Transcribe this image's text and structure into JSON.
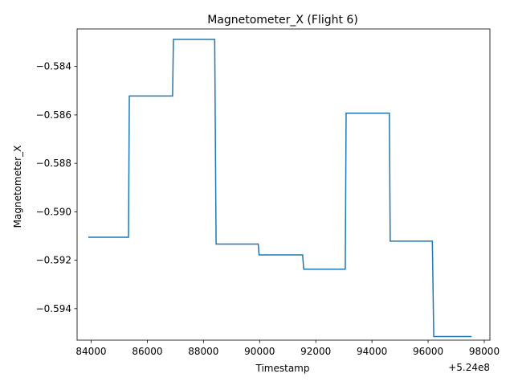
{
  "chart_data": {
    "type": "line",
    "title": "Magnetometer_X (Flight 6)",
    "xlabel": "Timestamp",
    "ylabel": "Magnetometer_X",
    "x_offset_label": "+5.24e8",
    "xlim": [
      83500,
      98200
    ],
    "ylim": [
      -0.5953,
      -0.58245
    ],
    "x_ticks": [
      84000,
      86000,
      88000,
      90000,
      92000,
      94000,
      96000,
      98000
    ],
    "x_tick_labels": [
      "84000",
      "86000",
      "88000",
      "90000",
      "92000",
      "94000",
      "96000",
      "98000"
    ],
    "y_ticks": [
      -0.594,
      -0.592,
      -0.59,
      -0.588,
      -0.586,
      -0.584
    ],
    "y_tick_labels": [
      "−0.594",
      "−0.592",
      "−0.590",
      "−0.588",
      "−0.586",
      "−0.584"
    ],
    "grid": false,
    "series": [
      {
        "color": "#1f77b4",
        "x": [
          83900,
          85330,
          85360,
          86900,
          86930,
          88400,
          88450,
          89950,
          89980,
          91530,
          91570,
          93050,
          93080,
          94620,
          94650,
          96150,
          96200,
          97550
        ],
        "y": [
          -0.59105,
          -0.59105,
          -0.58522,
          -0.58522,
          -0.58288,
          -0.58288,
          -0.59133,
          -0.59133,
          -0.59178,
          -0.59178,
          -0.59237,
          -0.59237,
          -0.58593,
          -0.58593,
          -0.59121,
          -0.59121,
          -0.59515,
          -0.59515
        ]
      }
    ]
  }
}
